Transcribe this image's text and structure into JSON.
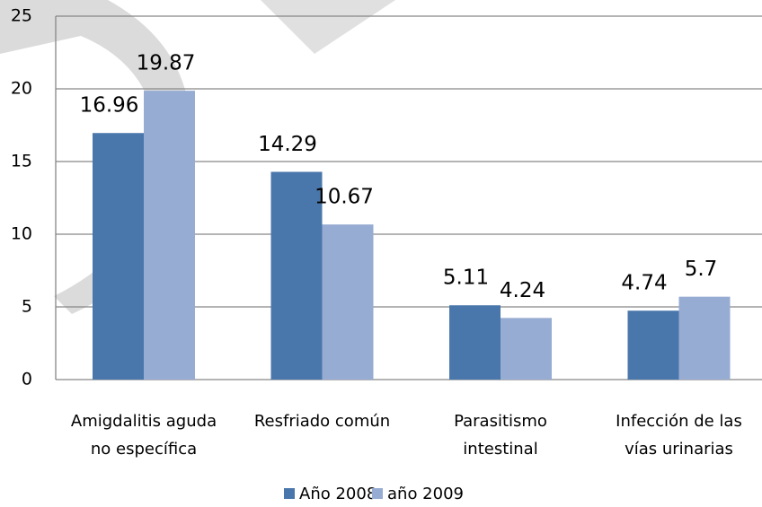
{
  "chart_data": {
    "type": "bar",
    "categories": [
      [
        "Amigdalitis aguda",
        "no específica"
      ],
      [
        "Resfriado común"
      ],
      [
        "Parasitismo",
        "intestinal"
      ],
      [
        "Infección de las",
        "vías urinarias"
      ]
    ],
    "series": [
      {
        "name": "Año 2008",
        "color": "#4a77ab",
        "values": [
          16.96,
          14.29,
          5.11,
          4.74
        ]
      },
      {
        "name": "año 2009",
        "color": "#97acd3",
        "values": [
          19.87,
          10.67,
          4.24,
          5.7
        ]
      }
    ],
    "ylim": [
      0,
      25
    ],
    "yticks": [
      0,
      5,
      10,
      15,
      20,
      25
    ],
    "grid": true
  }
}
